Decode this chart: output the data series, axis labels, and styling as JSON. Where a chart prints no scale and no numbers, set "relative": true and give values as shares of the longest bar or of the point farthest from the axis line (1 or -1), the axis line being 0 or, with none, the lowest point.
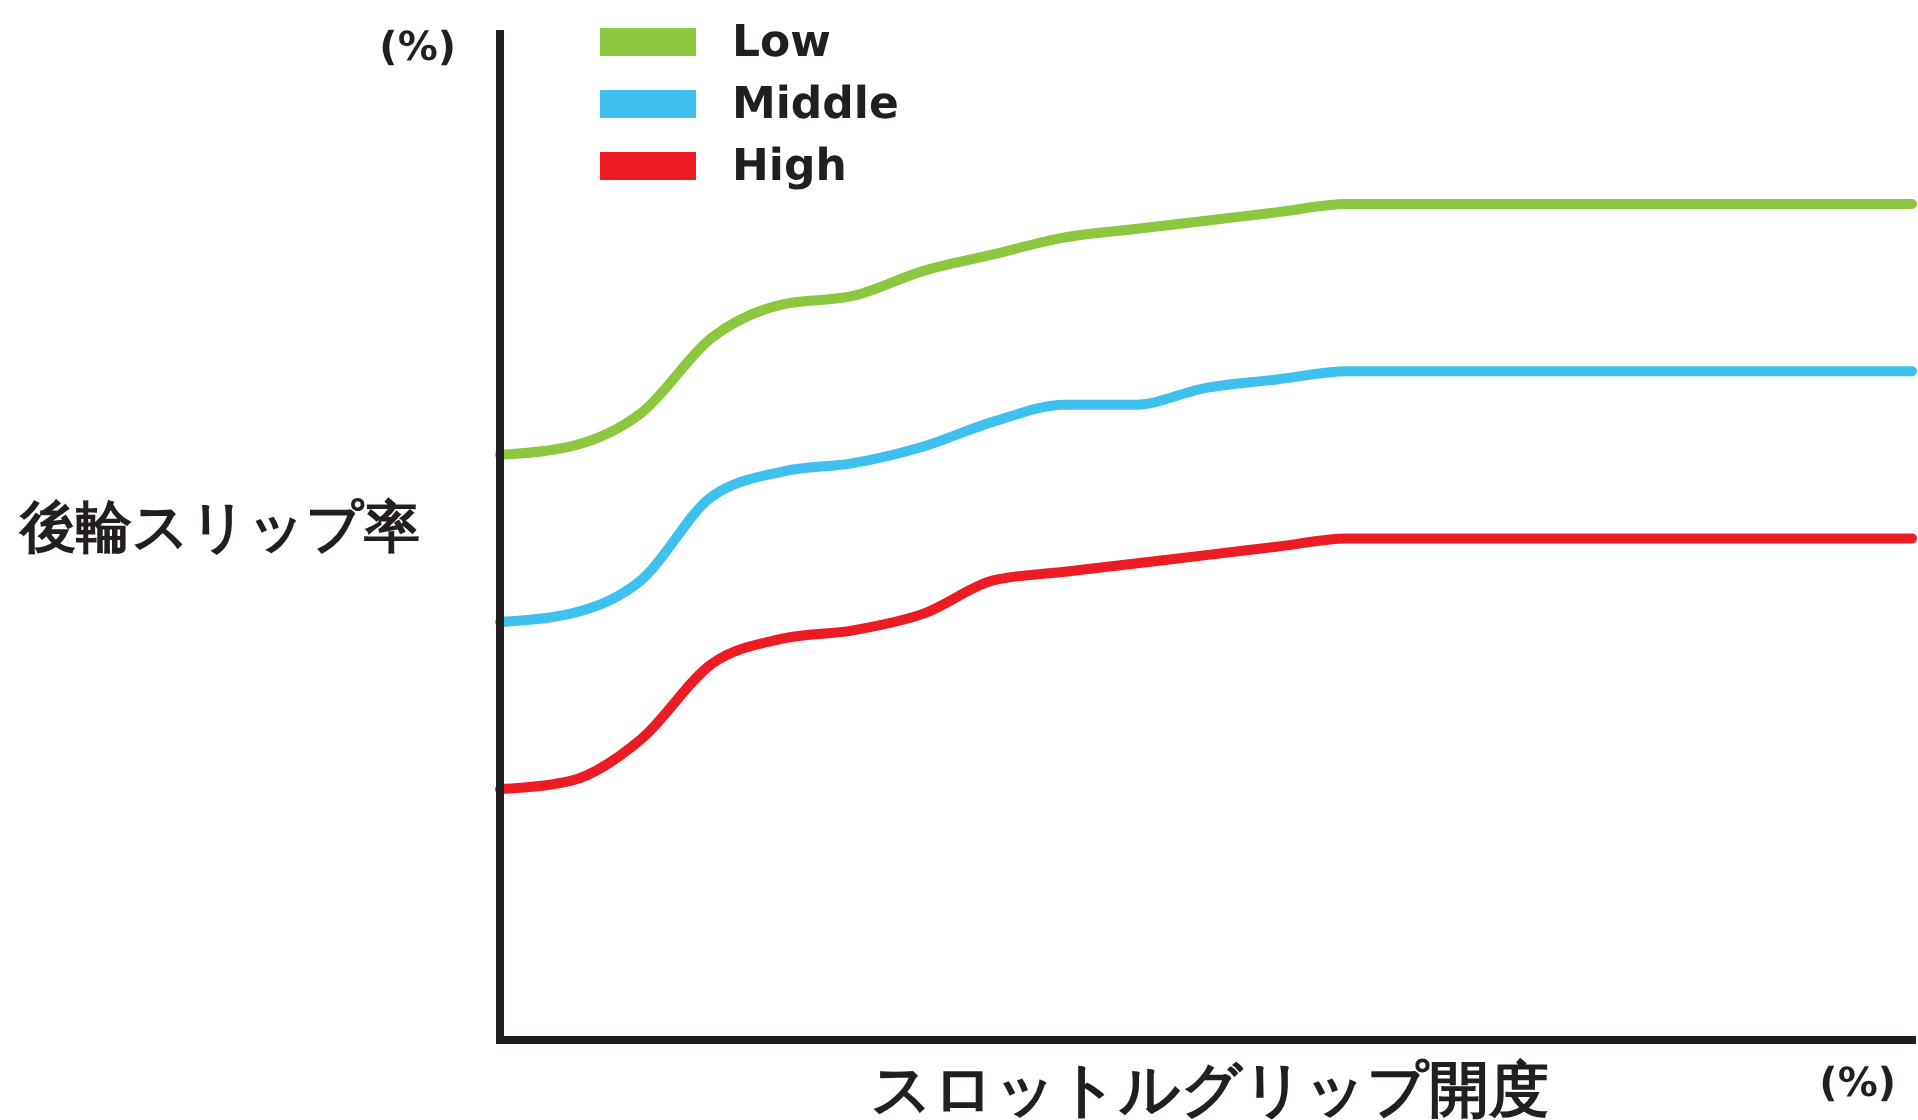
{
  "chart_data": {
    "type": "line",
    "relative": true,
    "ylabel": "後輪スリップ率",
    "xlabel": "スロットルグリップ開度",
    "annotations": [
      "(%)",
      "(%)"
    ],
    "legend": "top left",
    "marker": "none",
    "line_style": "solid",
    "categories": [
      null,
      null,
      null,
      null,
      null,
      null,
      null,
      null,
      null,
      null,
      null,
      null,
      null,
      null,
      null,
      null,
      null,
      null,
      null,
      null,
      null
    ],
    "series": [
      {
        "name": "Low",
        "color": "#8dc63f",
        "values": [
          0.7,
          0.71,
          0.75,
          0.84,
          0.88,
          0.89,
          0.92,
          0.94,
          0.96,
          0.97,
          0.98,
          0.99,
          1,
          1,
          1,
          1,
          1,
          1,
          1,
          1,
          1
        ]
      },
      {
        "name": "Middle",
        "color": "#3fc1f0",
        "values": [
          0.5,
          0.51,
          0.55,
          0.65,
          0.68,
          0.69,
          0.71,
          0.74,
          0.76,
          0.76,
          0.78,
          0.79,
          0.8,
          0.8,
          0.8,
          0.8,
          0.8,
          0.8,
          0.8,
          0.8,
          0.8
        ]
      },
      {
        "name": "High",
        "color": "#ed1c24",
        "values": [
          0.3,
          0.31,
          0.36,
          0.45,
          0.48,
          0.49,
          0.51,
          0.55,
          0.56,
          0.57,
          0.58,
          0.59,
          0.6,
          0.6,
          0.6,
          0.6,
          0.6,
          0.6,
          0.6,
          0.6,
          0.6
        ]
      }
    ]
  }
}
